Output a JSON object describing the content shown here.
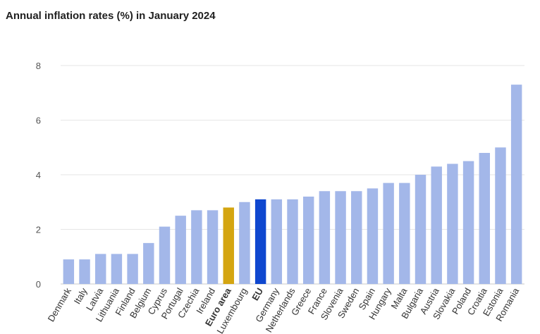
{
  "chart_data": {
    "type": "bar",
    "title": "Annual inflation rates (%) in January 2024",
    "xlabel": "",
    "ylabel": "",
    "ylim": [
      0,
      8
    ],
    "yticks": [
      0,
      2,
      4,
      6,
      8
    ],
    "grid": true,
    "categories": [
      "Denmark",
      "Italy",
      "Latvia",
      "Lithuania",
      "Finland",
      "Belgium",
      "Cyprus",
      "Portugal",
      "Czechia",
      "Ireland",
      "Euro area",
      "Luxembourg",
      "EU",
      "Germany",
      "Netherlands",
      "Greece",
      "France",
      "Slovenia",
      "Sweden",
      "Spain",
      "Hungary",
      "Malta",
      "Bulgaria",
      "Austria",
      "Slovakia",
      "Poland",
      "Croatia",
      "Estonia",
      "Romania"
    ],
    "values": [
      0.9,
      0.9,
      1.1,
      1.1,
      1.1,
      1.5,
      2.1,
      2.5,
      2.7,
      2.7,
      2.8,
      3.0,
      3.1,
      3.1,
      3.1,
      3.2,
      3.4,
      3.4,
      3.4,
      3.5,
      3.7,
      3.7,
      4.0,
      4.3,
      4.4,
      4.5,
      4.8,
      5.0,
      7.3
    ],
    "highlight": {
      "Euro area": "#d4a511",
      "EU": "#0f47cf"
    },
    "bold_labels": [
      "Euro area",
      "EU"
    ],
    "colors": {
      "default_bar": "#a3b7e9",
      "grid": "#e6e6e6"
    }
  }
}
